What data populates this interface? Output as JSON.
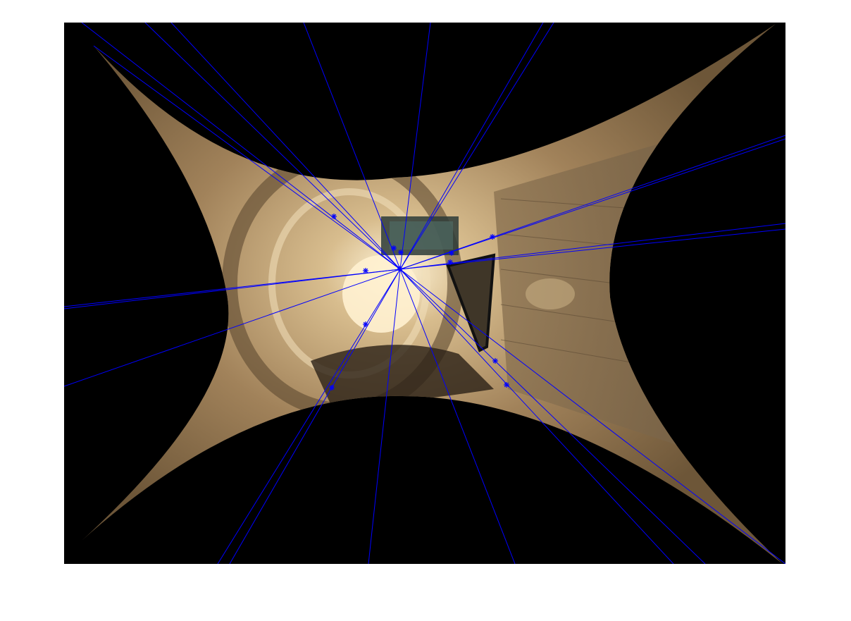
{
  "figure": {
    "background_color": "#ffffff",
    "axes_background_color": "#000000",
    "warped_image_tones": {
      "light": "#e8d2a8",
      "mid": "#a88a5e",
      "dark": "#4a3a26"
    },
    "overlay": {
      "line_color": "#0000ff",
      "marker_color": "#0000ff",
      "marker_symbol": "asterisk",
      "vanishing_point_lines": 20,
      "feature_markers": 12
    }
  }
}
